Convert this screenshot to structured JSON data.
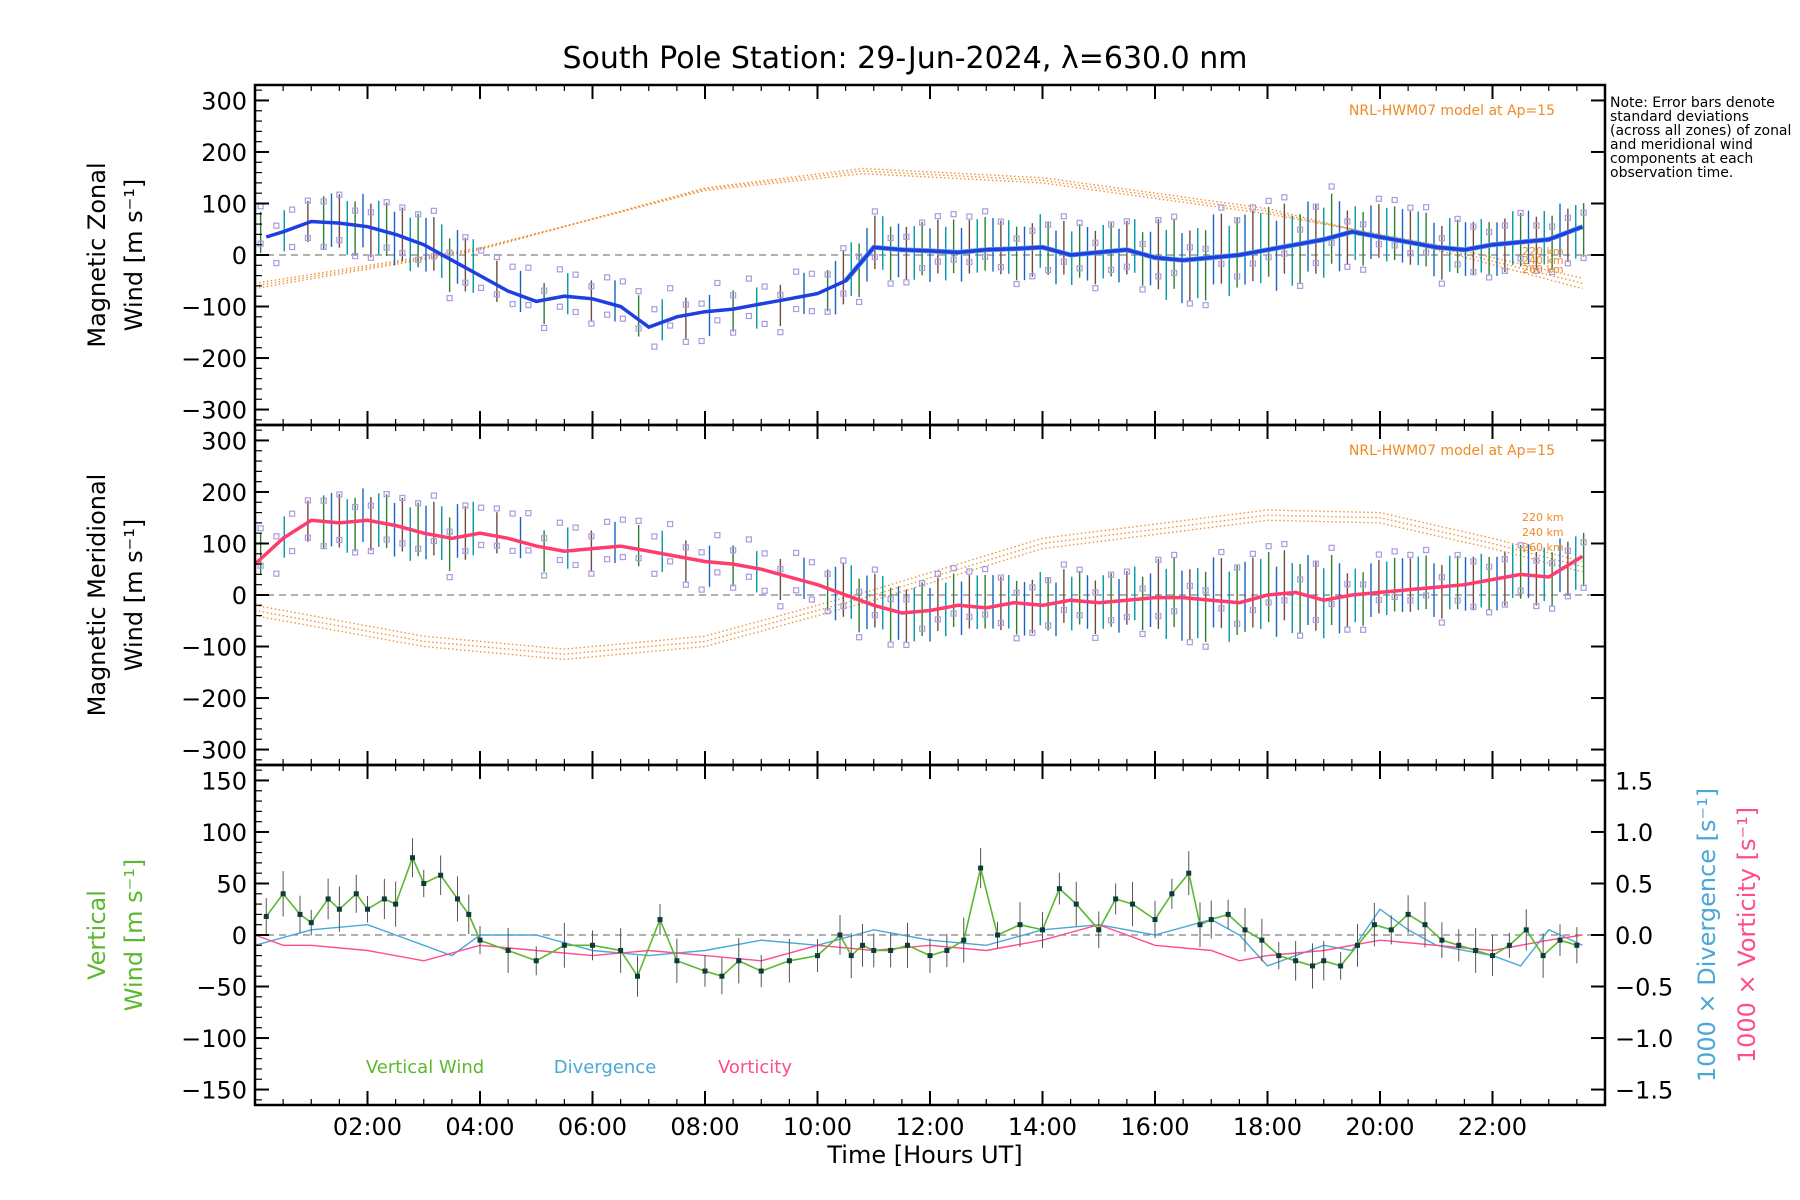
{
  "title": "South Pole Station: 29-Jun-2024, λ=630.0 nm",
  "note": "Note: Error bars denote standard deviations (across all zones) of zonal and meridional wind components at each observation time.",
  "xlabel": "Time [Hours UT]",
  "xticks": [
    "02:00",
    "04:00",
    "06:00",
    "08:00",
    "10:00",
    "12:00",
    "14:00",
    "16:00",
    "18:00",
    "20:00",
    "22:00"
  ],
  "colors": {
    "zonal": "#1f3fe0",
    "zonal_light": "#5aa0e0",
    "meridional": "#ff3c6e",
    "model": "#f08a24",
    "vertical": "#5cb82e",
    "divergence": "#4aa8d8",
    "vorticity": "#ff4d8c",
    "scatter": "#a99ce0",
    "error": "#404040"
  },
  "chart_data": [
    {
      "type": "line",
      "panel": "zonal",
      "ylabel": [
        "Magnetic Zonal",
        "Wind [m s⁻¹]"
      ],
      "ylim": [
        -330,
        330
      ],
      "yticks": [
        "300",
        "200",
        "100",
        "0",
        "−100",
        "−200",
        "−300"
      ],
      "ytick_values": [
        300,
        200,
        100,
        0,
        -100,
        -200,
        -300
      ],
      "model_label": "NRL-HWM07 model at Ap=15",
      "model_heights": [
        "220 km",
        "240 km",
        "260 km"
      ],
      "series": [
        {
          "name": "Zonal wind",
          "x": [
            0.2,
            0.5,
            1.0,
            1.5,
            2.0,
            2.5,
            3.0,
            3.5,
            4.0,
            4.5,
            5.0,
            5.5,
            6.0,
            6.5,
            7.0,
            7.5,
            8.0,
            8.5,
            9.0,
            9.5,
            10.0,
            10.5,
            11.0,
            11.5,
            12.0,
            12.5,
            13.0,
            13.5,
            14.0,
            14.5,
            15.0,
            15.5,
            16.0,
            16.5,
            17.0,
            17.5,
            18.0,
            18.5,
            19.0,
            19.5,
            20.0,
            20.5,
            21.0,
            21.5,
            22.0,
            22.5,
            23.0,
            23.6
          ],
          "y": [
            35,
            45,
            65,
            62,
            55,
            40,
            20,
            -10,
            -40,
            -70,
            -90,
            -80,
            -85,
            -100,
            -140,
            -120,
            -110,
            -105,
            -95,
            -85,
            -75,
            -50,
            15,
            10,
            8,
            5,
            10,
            12,
            15,
            0,
            5,
            10,
            -5,
            -10,
            -5,
            0,
            10,
            20,
            30,
            45,
            35,
            25,
            15,
            10,
            20,
            25,
            30,
            55
          ]
        },
        {
          "name": "HWM07 220 km",
          "x": [
            0,
            4,
            8,
            10.8,
            14,
            18,
            21,
            23.6
          ],
          "y": [
            -65,
            10,
            130,
            168,
            150,
            90,
            10,
            -65
          ]
        },
        {
          "name": "HWM07 240 km",
          "x": [
            0,
            4,
            8,
            10.8,
            14,
            18,
            21,
            23.6
          ],
          "y": [
            -60,
            12,
            128,
            163,
            145,
            85,
            15,
            -55
          ]
        },
        {
          "name": "HWM07 260 km",
          "x": [
            0,
            4,
            8,
            10.8,
            14,
            18,
            21,
            23.6
          ],
          "y": [
            -55,
            14,
            125,
            158,
            140,
            80,
            20,
            -45
          ]
        }
      ]
    },
    {
      "type": "line",
      "panel": "meridional",
      "ylabel": [
        "Magnetic Meridional",
        "Wind [m s⁻¹]"
      ],
      "ylim": [
        -330,
        330
      ],
      "yticks": [
        "300",
        "200",
        "100",
        "0",
        "−100",
        "−200",
        "−300"
      ],
      "ytick_values": [
        300,
        200,
        100,
        0,
        -100,
        -200,
        -300
      ],
      "model_label": "NRL-HWM07 model at Ap=15",
      "model_heights": [
        "220 km",
        "240 km",
        "260 km"
      ],
      "series": [
        {
          "name": "Meridional wind",
          "x": [
            0.0,
            0.5,
            1.0,
            1.5,
            2.0,
            2.5,
            3.0,
            3.5,
            4.0,
            4.5,
            5.0,
            5.5,
            6.0,
            6.5,
            7.0,
            7.5,
            8.0,
            8.5,
            9.0,
            9.5,
            10.0,
            10.5,
            11.0,
            11.5,
            12.0,
            12.5,
            13.0,
            13.5,
            14.0,
            14.5,
            15.0,
            15.5,
            16.0,
            16.5,
            17.0,
            17.5,
            18.0,
            18.5,
            19.0,
            19.5,
            20.0,
            20.5,
            21.0,
            21.5,
            22.0,
            22.5,
            23.0,
            23.6
          ],
          "y": [
            60,
            110,
            145,
            140,
            145,
            135,
            120,
            110,
            120,
            110,
            95,
            85,
            90,
            95,
            85,
            75,
            65,
            60,
            50,
            35,
            20,
            0,
            -20,
            -35,
            -30,
            -20,
            -25,
            -15,
            -20,
            -10,
            -15,
            -10,
            -5,
            -5,
            -10,
            -15,
            0,
            5,
            -10,
            0,
            5,
            10,
            15,
            20,
            30,
            40,
            35,
            75
          ]
        },
        {
          "name": "HWM07 220 km",
          "x": [
            0,
            3,
            5.5,
            8,
            11,
            14,
            18,
            20,
            22,
            23.6
          ],
          "y": [
            -20,
            -80,
            -105,
            -80,
            10,
            110,
            165,
            160,
            110,
            65
          ]
        },
        {
          "name": "HWM07 240 km",
          "x": [
            0,
            3,
            5.5,
            8,
            11,
            14,
            18,
            20,
            22,
            23.6
          ],
          "y": [
            -30,
            -90,
            -115,
            -90,
            0,
            100,
            155,
            150,
            100,
            55
          ]
        },
        {
          "name": "HWM07 260 km",
          "x": [
            0,
            3,
            5.5,
            8,
            11,
            14,
            18,
            20,
            22,
            23.6
          ],
          "y": [
            -40,
            -100,
            -125,
            -100,
            -10,
            90,
            145,
            140,
            90,
            45
          ]
        }
      ]
    },
    {
      "type": "line",
      "panel": "vertical",
      "ylabel": [
        "Vertical",
        "Wind [m s⁻¹]"
      ],
      "ylim": [
        -165,
        165
      ],
      "yticks": [
        "150",
        "100",
        "50",
        "0",
        "−50",
        "−100",
        "−150"
      ],
      "ytick_values": [
        150,
        100,
        50,
        0,
        -50,
        -100,
        -150
      ],
      "y2label_div": "1000 × Divergence [s⁻¹]",
      "y2label_vort": "1000 × Vorticity [s⁻¹]",
      "y2lim": [
        -1.65,
        1.65
      ],
      "y2ticks": [
        "1.5",
        "1.0",
        "0.5",
        "0.0",
        "−0.5",
        "−1.0",
        "−1.5"
      ],
      "y2tick_values": [
        1.5,
        1.0,
        0.5,
        0,
        -0.5,
        -1.0,
        -1.5
      ],
      "legend": [
        "Vertical Wind",
        "Divergence",
        "Vorticity"
      ],
      "series": [
        {
          "name": "Vertical Wind",
          "x": [
            0.2,
            0.5,
            0.8,
            1.0,
            1.3,
            1.5,
            1.8,
            2.0,
            2.3,
            2.5,
            2.8,
            3.0,
            3.3,
            3.6,
            3.8,
            4.0,
            4.5,
            5.0,
            5.5,
            6.0,
            6.5,
            6.8,
            7.2,
            7.5,
            8.0,
            8.3,
            8.6,
            9.0,
            9.5,
            10.0,
            10.4,
            10.6,
            10.8,
            11.0,
            11.3,
            11.6,
            12.0,
            12.3,
            12.6,
            12.9,
            13.2,
            13.6,
            14.0,
            14.3,
            14.6,
            15.0,
            15.3,
            15.6,
            16.0,
            16.3,
            16.6,
            16.8,
            17.0,
            17.3,
            17.6,
            17.9,
            18.2,
            18.5,
            18.8,
            19.0,
            19.3,
            19.6,
            19.9,
            20.2,
            20.5,
            20.8,
            21.1,
            21.4,
            21.7,
            22.0,
            22.3,
            22.6,
            22.9,
            23.2,
            23.5
          ],
          "y": [
            18,
            40,
            20,
            12,
            35,
            25,
            40,
            25,
            35,
            30,
            75,
            50,
            58,
            35,
            20,
            -5,
            -15,
            -25,
            -10,
            -10,
            -15,
            -40,
            15,
            -25,
            -35,
            -40,
            -25,
            -35,
            -25,
            -20,
            0,
            -20,
            -10,
            -15,
            -15,
            -10,
            -20,
            -15,
            -5,
            65,
            0,
            10,
            5,
            45,
            30,
            5,
            35,
            30,
            15,
            40,
            60,
            10,
            15,
            20,
            5,
            -5,
            -20,
            -25,
            -30,
            -25,
            -30,
            -10,
            10,
            5,
            20,
            10,
            -5,
            -10,
            -15,
            -20,
            -10,
            5,
            -20,
            -5,
            -10
          ]
        },
        {
          "name": "Divergence",
          "x": [
            0,
            1,
            2,
            2.5,
            3,
            3.5,
            4,
            5,
            6,
            7,
            8,
            9,
            10,
            11,
            12,
            13,
            14,
            15,
            16,
            17,
            17.5,
            18,
            19,
            19.5,
            20,
            20.5,
            21,
            22,
            22.5,
            23,
            23.6
          ],
          "y": [
            -0.1,
            0.05,
            0.1,
            0.0,
            -0.1,
            -0.2,
            0.0,
            0.0,
            -0.15,
            -0.2,
            -0.15,
            -0.05,
            -0.1,
            0.05,
            -0.05,
            -0.1,
            0.05,
            0.1,
            0.0,
            0.15,
            0.0,
            -0.3,
            -0.1,
            -0.15,
            0.25,
            0.05,
            -0.1,
            -0.2,
            -0.3,
            0.05,
            -0.1
          ]
        },
        {
          "name": "Vorticity",
          "x": [
            0,
            0.5,
            1,
            2,
            3,
            4,
            5,
            6,
            7,
            8,
            9,
            10,
            11,
            12,
            13,
            14,
            15,
            16,
            17,
            17.5,
            18,
            19,
            20,
            21,
            22,
            22.5,
            23,
            23.6
          ],
          "y": [
            0.0,
            -0.1,
            -0.1,
            -0.15,
            -0.25,
            -0.1,
            -0.15,
            -0.2,
            -0.15,
            -0.2,
            -0.25,
            -0.1,
            -0.15,
            -0.1,
            -0.15,
            -0.05,
            0.1,
            -0.1,
            -0.15,
            -0.25,
            -0.2,
            -0.15,
            -0.05,
            -0.1,
            -0.15,
            -0.1,
            -0.05,
            0.0
          ]
        }
      ]
    }
  ]
}
